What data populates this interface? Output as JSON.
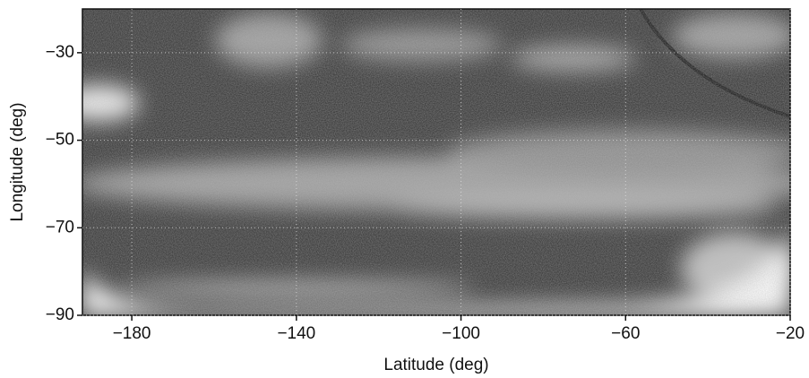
{
  "chart_data": {
    "type": "image",
    "x_label": "Latitude (deg)",
    "y_label": "Longitude (deg)",
    "xlim": [
      -192,
      -20
    ],
    "ylim": [
      -90,
      -20
    ],
    "xticks": [
      {
        "value": -180,
        "label": "−180"
      },
      {
        "value": -140,
        "label": "−140"
      },
      {
        "value": -100,
        "label": "−100"
      },
      {
        "value": -60,
        "label": "−60"
      },
      {
        "value": -20,
        "label": "−20"
      }
    ],
    "yticks": [
      {
        "value": -30,
        "label": "−30"
      },
      {
        "value": -50,
        "label": "−50"
      },
      {
        "value": -70,
        "label": "−70"
      },
      {
        "value": -90,
        "label": "−90"
      }
    ],
    "grid": true
  }
}
